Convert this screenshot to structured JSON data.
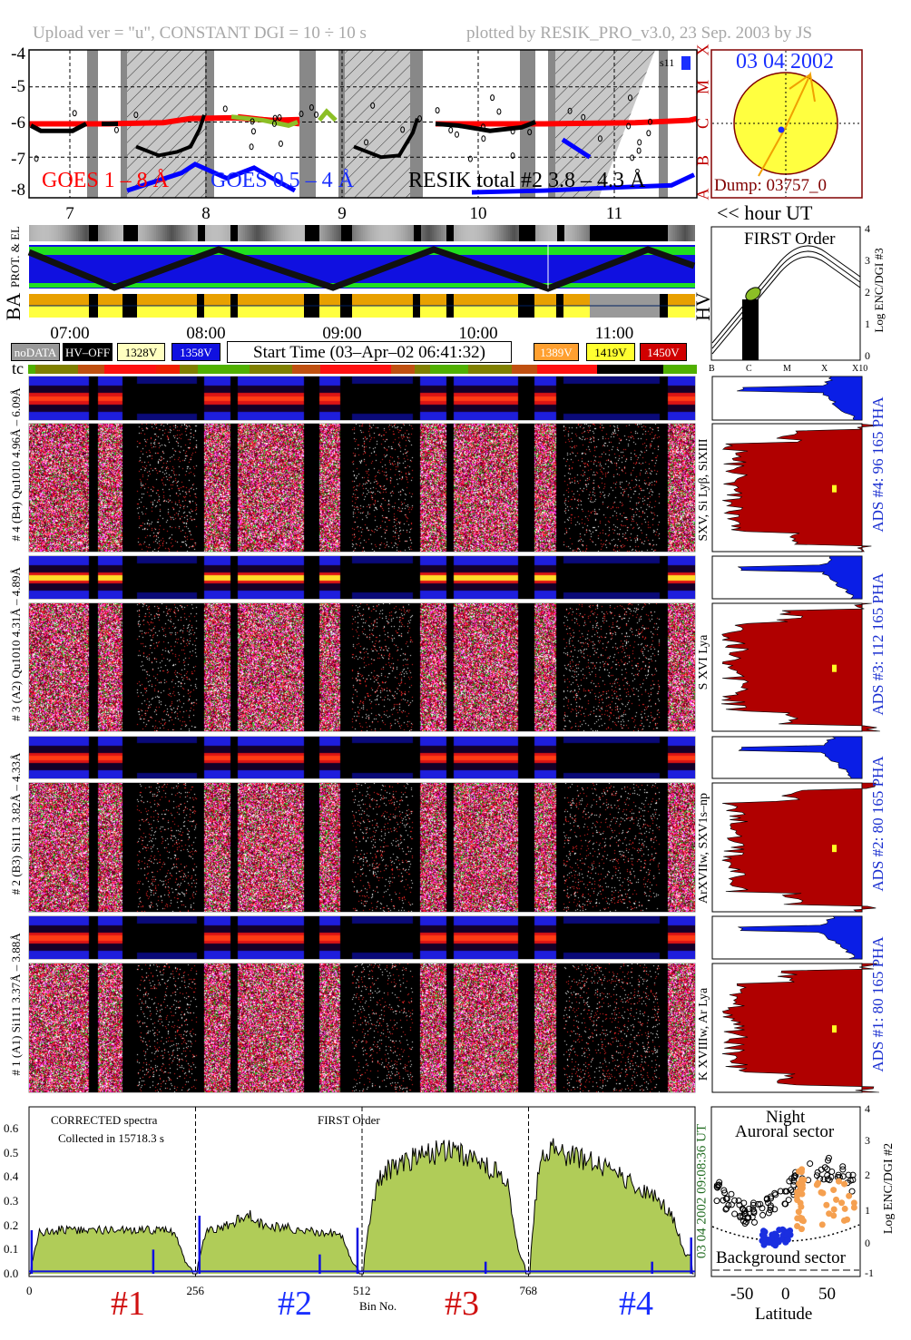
{
  "header": {
    "left": "Upload ver = \"u\", CONSTANT  DGI =  10 ÷  10 s",
    "right": "plotted by RESIK_PRO_v3.0, 23 Sep. 2003 by JS"
  },
  "top_plot": {
    "y_ticks": [
      "-4",
      "-5",
      "-6",
      "-7",
      "-8"
    ],
    "class_letters": [
      "X",
      "M",
      "C",
      "B",
      "A"
    ],
    "legend_goes18": "GOES 1 – 8 Å",
    "legend_goes054": "GOES 0.5 – 4 Å",
    "legend_resik": "RESIK total #2  3.8 – 4.3 Å",
    "marker": "s11",
    "colors": {
      "goes18": "#ff0000",
      "goes054": "#0000ff",
      "resik": "#000000",
      "resik_alt": "#8cbf26"
    }
  },
  "sun_box": {
    "date": "03 04 2002",
    "dump": "Dump: 03757_0"
  },
  "hours_top": [
    "7",
    "8",
    "9",
    "10",
    "11"
  ],
  "hour_ut_label": "<< hour UT",
  "strip_labels": {
    "prot": "PROT. & EL",
    "ba": "BA",
    "hv": "HV",
    "tc": "tc"
  },
  "hours_bottom": [
    "07:00",
    "08:00",
    "09:00",
    "10:00",
    "11:00"
  ],
  "legend": {
    "nodata": "noDATA",
    "hvoff": "HV–OFF",
    "v1328": "1328V",
    "v1358": "1358V",
    "start": "Start Time (03–Apr–02 06:41:32)",
    "v1389": "1389V",
    "v1419": "1419V",
    "v1450": "1450V"
  },
  "panels": [
    {
      "label": "# 4 (B4) Qu1010 4.96Å – 6.09Å",
      "ads": "ADS #4:   96 165   PHA",
      "lines": "SXV, Si Lyβ, SiXIII"
    },
    {
      "label": "# 3 (A2) Qu1010 4.31Å – 4.89Å",
      "ads": "ADS #3:   112 165   PHA",
      "lines": "S XVI Lya"
    },
    {
      "label": "# 2 (B3) Si111  3.82Å – 4.33Å",
      "ads": "ADS #2:   80 165   PHA",
      "lines": "ArXVIIw, SXV1s–np"
    },
    {
      "label": "# 1 (A1) Si111  3.37Å – 3.88Å",
      "ads": "ADS #1:   80 165   PHA",
      "lines": "K XVIIIw, Ar Lya"
    }
  ],
  "class_axis": [
    "B",
    "C",
    "M",
    "X",
    "X10"
  ],
  "first_order": {
    "title": "FIRST Order",
    "ylabel": "Log ENC/DGI #3",
    "y_ticks": [
      "0",
      "1",
      "2",
      "3",
      "4"
    ]
  },
  "chart_data": {
    "type": "area",
    "title": "CORRECTED spectra",
    "subtitle": "Collected in 15718.3 s",
    "order": "FIRST Order",
    "xlabel": "Bin No.",
    "ylabel": "",
    "x_ticks": [
      "0",
      "256",
      "512",
      "768"
    ],
    "y_ticks": [
      "0.0",
      "0.1",
      "0.2",
      "0.3",
      "0.4",
      "0.5",
      "0.6"
    ],
    "xlim": [
      0,
      1024
    ],
    "ylim": [
      0,
      0.68
    ],
    "timestamp": "03 04 2002     09:08:36 UT",
    "channels": [
      "#1",
      "#2",
      "#3",
      "#4"
    ],
    "bin_step": 16,
    "series": [
      {
        "name": "corrected spectrum",
        "values": [
          0,
          0.17,
          0.18,
          0.18,
          0.18,
          0.18,
          0.18,
          0.18,
          0.18,
          0.18,
          0.18,
          0.18,
          0.18,
          0.18,
          0.17,
          0.05,
          0,
          0.18,
          0.18,
          0.2,
          0.22,
          0.25,
          0.21,
          0.2,
          0.19,
          0.19,
          0.18,
          0.18,
          0.17,
          0.17,
          0.16,
          0.05,
          0,
          0.3,
          0.42,
          0.44,
          0.46,
          0.48,
          0.49,
          0.5,
          0.51,
          0.5,
          0.48,
          0.46,
          0.44,
          0.42,
          0.38,
          0.1,
          0,
          0.45,
          0.52,
          0.5,
          0.49,
          0.48,
          0.46,
          0.45,
          0.43,
          0.4,
          0.37,
          0.35,
          0.32,
          0.28,
          0.22,
          0.08
        ]
      },
      {
        "name": "background",
        "level": 0.01,
        "spikes": [
          {
            "bin": 4,
            "value": 0.18
          },
          {
            "bin": 191,
            "value": 0.1
          },
          {
            "bin": 262,
            "value": 0.24
          },
          {
            "bin": 447,
            "value": 0.08
          },
          {
            "bin": 505,
            "value": 0.19
          },
          {
            "bin": 702,
            "value": 0.05
          },
          {
            "bin": 958,
            "value": 0.05
          },
          {
            "bin": 1018,
            "value": 0.15
          }
        ]
      }
    ]
  },
  "aurora": {
    "title1": "Night",
    "title2": "Auroral sector",
    "bottom": "Background sector",
    "ylabel": "Log ENC/DGI #2",
    "y_ticks": [
      "-1",
      "0",
      "1",
      "2",
      "3",
      "4"
    ],
    "x_ticks": [
      "-50",
      "0",
      "50"
    ],
    "xlabel": "Latitude"
  }
}
